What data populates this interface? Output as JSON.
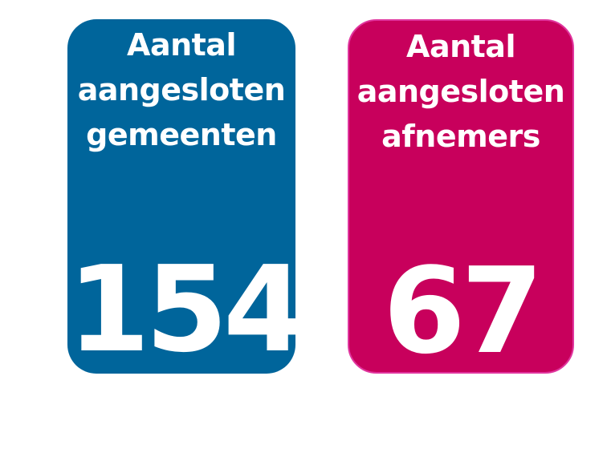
{
  "cards": [
    {
      "label_lines": [
        "Aantal",
        "aangesloten",
        "gemeenten"
      ],
      "value": 154
    },
    {
      "label_lines": [
        "Aantal",
        "aangesloten",
        "afnemers"
      ],
      "value": 67
    }
  ]
}
